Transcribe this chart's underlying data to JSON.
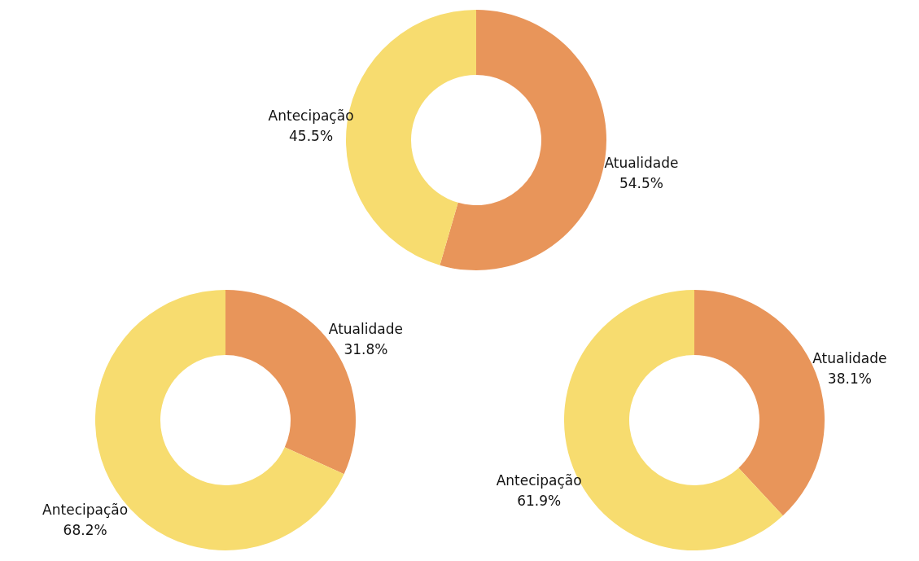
{
  "chart_data": [
    {
      "type": "donut",
      "categories": [
        "Atualidade",
        "Antecipação"
      ],
      "values": [
        54.5,
        45.5
      ],
      "colors": [
        "#e8955a",
        "#f7dc6f"
      ],
      "value_labels": [
        "54.5%",
        "45.5%"
      ]
    },
    {
      "type": "donut",
      "categories": [
        "Atualidade",
        "Antecipação"
      ],
      "values": [
        31.8,
        68.2
      ],
      "colors": [
        "#e8955a",
        "#f7dc6f"
      ],
      "value_labels": [
        "31.8%",
        "68.2%"
      ]
    },
    {
      "type": "donut",
      "categories": [
        "Atualidade",
        "Antecipação"
      ],
      "values": [
        38.1,
        61.9
      ],
      "colors": [
        "#e8955a",
        "#f7dc6f"
      ],
      "value_labels": [
        "38.1%",
        "61.9%"
      ]
    }
  ]
}
